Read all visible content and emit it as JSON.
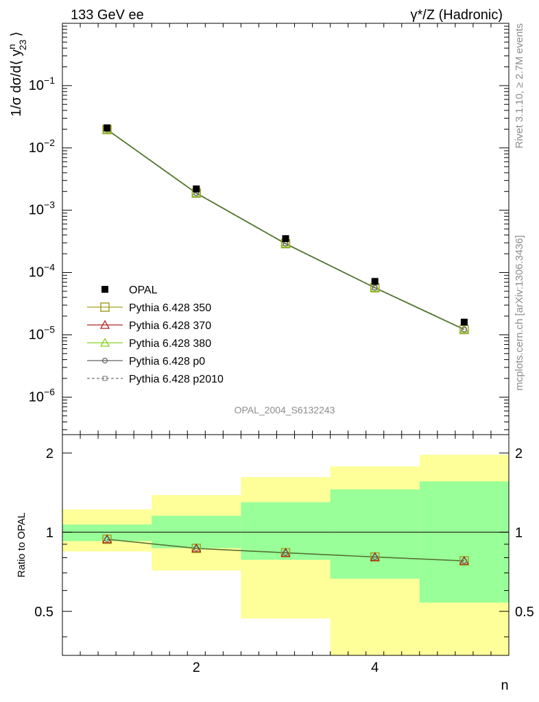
{
  "header": {
    "left_title": "133 GeV ee",
    "right_title": "γ*/Z (Hadronic)"
  },
  "side_text": {
    "rivet": "Rivet 3.1.10, ≥ 2.7M events",
    "mcplots": "mcplots.cern.ch [arXiv:1306.3436]"
  },
  "watermark": "OPAL_2004_S6132243",
  "colors": {
    "opal": "#000000",
    "p350": "#a0a020",
    "p370": "#b02020",
    "p380": "#80d020",
    "p0": "#606060",
    "p2010": "#707070",
    "band_inner": "#99ff99",
    "band_outer": "#ffff99",
    "main_line": "#4d7a1a"
  },
  "chart_data": [
    {
      "type": "scatter",
      "panel": "main",
      "ylabel_text": "1/σ dσ/d⟨ y",
      "ylabel_sup": "n",
      "ylabel_sub": "23",
      "ylabel_close": "⟩",
      "yscale": "log",
      "xlim": [
        0.5,
        5.5
      ],
      "ylim": [
        2.5e-07,
        1.0
      ],
      "y_ticks": [
        {
          "value": 1e-06,
          "base": "10",
          "exp": "−6"
        },
        {
          "value": 1e-05,
          "base": "10",
          "exp": "−5"
        },
        {
          "value": 0.0001,
          "base": "10",
          "exp": "−4"
        },
        {
          "value": 0.001,
          "base": "10",
          "exp": "−3"
        },
        {
          "value": 0.01,
          "base": "10",
          "exp": "−2"
        },
        {
          "value": 0.1,
          "base": "10",
          "exp": "−1"
        }
      ],
      "legend_position": "bottom-left",
      "x": [
        1,
        2,
        3,
        4,
        5
      ],
      "series": [
        {
          "name": "OPAL",
          "marker": "filled-square",
          "values": [
            0.021,
            0.0022,
            0.00035,
            7.2e-05,
            1.6e-05
          ]
        },
        {
          "name": "Pythia 6.428 350",
          "marker": "open-square",
          "values": [
            0.0197,
            0.00188,
            0.00029,
            5.7e-05,
            1.22e-05
          ]
        },
        {
          "name": "Pythia 6.428 370",
          "marker": "open-triangle",
          "values": [
            0.0197,
            0.00188,
            0.00029,
            5.7e-05,
            1.22e-05
          ]
        },
        {
          "name": "Pythia 6.428 380",
          "marker": "open-triangle",
          "values": [
            0.0197,
            0.00188,
            0.00029,
            5.7e-05,
            1.22e-05
          ]
        },
        {
          "name": "Pythia 6.428 p0",
          "marker": "open-circle",
          "values": [
            0.0197,
            0.00188,
            0.00029,
            5.7e-05,
            1.22e-05
          ]
        },
        {
          "name": "Pythia 6.428 p2010",
          "marker": "open-square-dashed",
          "values": [
            0.0197,
            0.00188,
            0.00029,
            5.7e-05,
            1.22e-05
          ]
        }
      ]
    },
    {
      "type": "line",
      "panel": "ratio",
      "ylabel": "Ratio to OPAL",
      "xlabel": "n",
      "yscale": "log",
      "xlim": [
        0.5,
        5.5
      ],
      "ylim": [
        0.34,
        2.35
      ],
      "y_ticks": [
        {
          "value": 0.5,
          "label": "0.5"
        },
        {
          "value": 1,
          "label": "1"
        },
        {
          "value": 2,
          "label": "2"
        }
      ],
      "x_ticks": [
        {
          "value": 2,
          "label": "2"
        },
        {
          "value": 4,
          "label": "4"
        }
      ],
      "bands": [
        {
          "x0": 0.5,
          "x1": 1.5,
          "inner": [
            0.925,
            1.07
          ],
          "outer": [
            0.845,
            1.22
          ]
        },
        {
          "x0": 1.5,
          "x1": 2.5,
          "inner": [
            0.87,
            1.155
          ],
          "outer": [
            0.715,
            1.385
          ]
        },
        {
          "x0": 2.5,
          "x1": 3.5,
          "inner": [
            0.785,
            1.3
          ],
          "outer": [
            0.47,
            1.62
          ]
        },
        {
          "x0": 3.5,
          "x1": 4.5,
          "inner": [
            0.665,
            1.455
          ],
          "outer": [
            0.3,
            1.78
          ]
        },
        {
          "x0": 4.5,
          "x1": 5.5,
          "inner": [
            0.54,
            1.56
          ],
          "outer": [
            0.3,
            1.97
          ]
        }
      ],
      "x": [
        1,
        2,
        3,
        4,
        5
      ],
      "series": [
        {
          "name": "Pythia 6.428 350",
          "values": [
            0.94,
            0.868,
            0.835,
            0.805,
            0.778
          ]
        },
        {
          "name": "Pythia 6.428 p0",
          "values": [
            0.94,
            0.868,
            0.835,
            0.805,
            0.778
          ]
        }
      ]
    }
  ]
}
